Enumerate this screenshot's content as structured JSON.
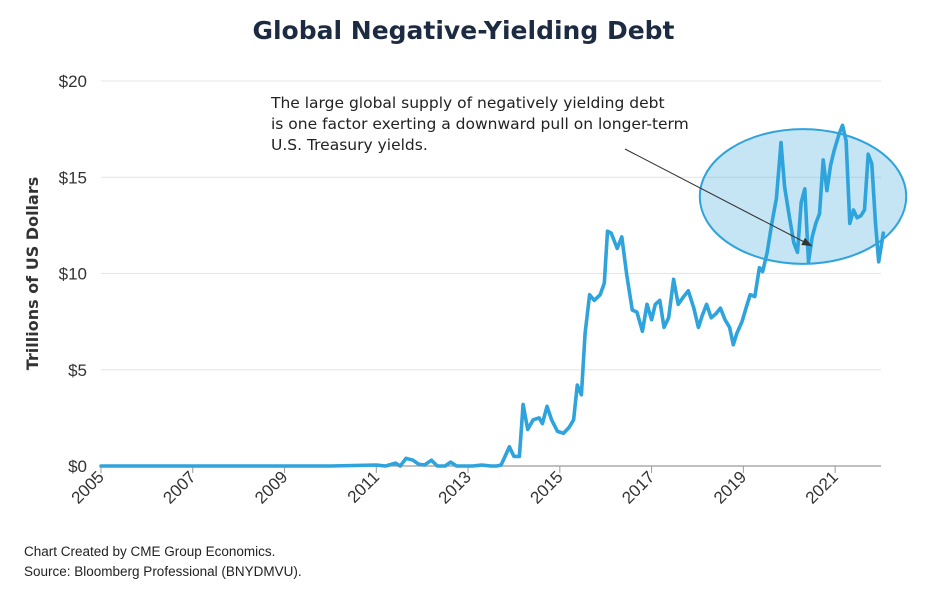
{
  "chart_data": {
    "type": "line",
    "title": "Global Negative-Yielding Debt",
    "xlabel": "",
    "ylabel": "Trillions of US Dollars",
    "xlim": [
      2005.0,
      2022.0
    ],
    "ylim": [
      0,
      20
    ],
    "x_ticks": [
      2005,
      2007,
      2009,
      2011,
      2013,
      2015,
      2017,
      2019,
      2021
    ],
    "x_tick_labels": [
      "2005",
      "2007",
      "2009",
      "2011",
      "2013",
      "2015",
      "2017",
      "2019",
      "2021"
    ],
    "y_ticks": [
      0,
      5,
      10,
      15,
      20
    ],
    "y_tick_labels": [
      "$0",
      "$5",
      "$10",
      "$15",
      "$20"
    ],
    "grid": true,
    "line_color": "#2ea3dc",
    "highlight_color": "#2ea3dc",
    "annotation": {
      "lines": [
        "The large global supply of negatively yielding debt",
        "is one factor exerting a downward pull on longer-term",
        "U.S. Treasury yields."
      ]
    },
    "highlight_ellipse": {
      "center": [
        2020.3,
        14.0
      ],
      "radius_years": 2.25,
      "radius_value": 3.5
    },
    "series": [
      {
        "values": [
          [
            2005.0,
            0.0
          ],
          [
            2010.0,
            0.0
          ],
          [
            2011.0,
            0.05
          ],
          [
            2011.2,
            0.0
          ],
          [
            2011.42,
            0.15
          ],
          [
            2011.52,
            0.0
          ],
          [
            2011.65,
            0.4
          ],
          [
            2011.8,
            0.3
          ],
          [
            2011.92,
            0.1
          ],
          [
            2012.05,
            0.05
          ],
          [
            2012.2,
            0.3
          ],
          [
            2012.33,
            0.0
          ],
          [
            2012.5,
            0.0
          ],
          [
            2012.62,
            0.2
          ],
          [
            2012.75,
            0.0
          ],
          [
            2013.1,
            0.0
          ],
          [
            2013.3,
            0.05
          ],
          [
            2013.5,
            0.0
          ],
          [
            2013.62,
            0.0
          ],
          [
            2013.72,
            0.05
          ],
          [
            2013.9,
            1.0
          ],
          [
            2014.0,
            0.5
          ],
          [
            2014.12,
            0.5
          ],
          [
            2014.2,
            3.2
          ],
          [
            2014.3,
            1.9
          ],
          [
            2014.42,
            2.4
          ],
          [
            2014.55,
            2.5
          ],
          [
            2014.62,
            2.2
          ],
          [
            2014.72,
            3.1
          ],
          [
            2014.82,
            2.4
          ],
          [
            2014.95,
            1.8
          ],
          [
            2015.08,
            1.7
          ],
          [
            2015.2,
            2.0
          ],
          [
            2015.3,
            2.4
          ],
          [
            2015.38,
            4.2
          ],
          [
            2015.47,
            3.7
          ],
          [
            2015.55,
            6.9
          ],
          [
            2015.65,
            8.9
          ],
          [
            2015.75,
            8.6
          ],
          [
            2015.88,
            8.9
          ],
          [
            2015.97,
            9.5
          ],
          [
            2016.04,
            12.2
          ],
          [
            2016.12,
            12.1
          ],
          [
            2016.25,
            11.3
          ],
          [
            2016.35,
            11.9
          ],
          [
            2016.46,
            9.9
          ],
          [
            2016.58,
            8.1
          ],
          [
            2016.68,
            8.0
          ],
          [
            2016.8,
            7.0
          ],
          [
            2016.9,
            8.4
          ],
          [
            2017.0,
            7.6
          ],
          [
            2017.08,
            8.4
          ],
          [
            2017.18,
            8.6
          ],
          [
            2017.27,
            7.2
          ],
          [
            2017.37,
            7.7
          ],
          [
            2017.48,
            9.7
          ],
          [
            2017.58,
            8.4
          ],
          [
            2017.7,
            8.8
          ],
          [
            2017.8,
            9.1
          ],
          [
            2017.92,
            8.2
          ],
          [
            2018.02,
            7.2
          ],
          [
            2018.1,
            7.8
          ],
          [
            2018.2,
            8.4
          ],
          [
            2018.3,
            7.7
          ],
          [
            2018.4,
            7.9
          ],
          [
            2018.5,
            8.2
          ],
          [
            2018.6,
            7.6
          ],
          [
            2018.7,
            7.2
          ],
          [
            2018.78,
            6.3
          ],
          [
            2018.86,
            6.9
          ],
          [
            2018.97,
            7.5
          ],
          [
            2019.07,
            8.3
          ],
          [
            2019.15,
            8.9
          ],
          [
            2019.25,
            8.8
          ],
          [
            2019.35,
            10.3
          ],
          [
            2019.42,
            10.1
          ],
          [
            2019.52,
            11.1
          ],
          [
            2019.62,
            12.6
          ],
          [
            2019.72,
            13.9
          ],
          [
            2019.82,
            16.8
          ],
          [
            2019.9,
            14.5
          ],
          [
            2020.0,
            13.0
          ],
          [
            2020.1,
            11.6
          ],
          [
            2020.18,
            11.1
          ],
          [
            2020.26,
            13.7
          ],
          [
            2020.34,
            14.4
          ],
          [
            2020.42,
            10.6
          ],
          [
            2020.5,
            11.9
          ],
          [
            2020.58,
            12.6
          ],
          [
            2020.66,
            13.1
          ],
          [
            2020.74,
            15.9
          ],
          [
            2020.82,
            14.3
          ],
          [
            2020.9,
            15.6
          ],
          [
            2020.98,
            16.4
          ],
          [
            2021.08,
            17.2
          ],
          [
            2021.16,
            17.7
          ],
          [
            2021.24,
            16.9
          ],
          [
            2021.32,
            12.6
          ],
          [
            2021.4,
            13.3
          ],
          [
            2021.48,
            12.9
          ],
          [
            2021.56,
            13.0
          ],
          [
            2021.64,
            13.3
          ],
          [
            2021.72,
            16.2
          ],
          [
            2021.8,
            15.7
          ],
          [
            2021.88,
            12.6
          ],
          [
            2021.95,
            10.6
          ],
          [
            2022.05,
            12.1
          ]
        ]
      }
    ]
  },
  "footer": {
    "line1": "Chart Created by CME Group Economics.",
    "line2": "Source:  Bloomberg Professional (BNYDMVU)."
  }
}
